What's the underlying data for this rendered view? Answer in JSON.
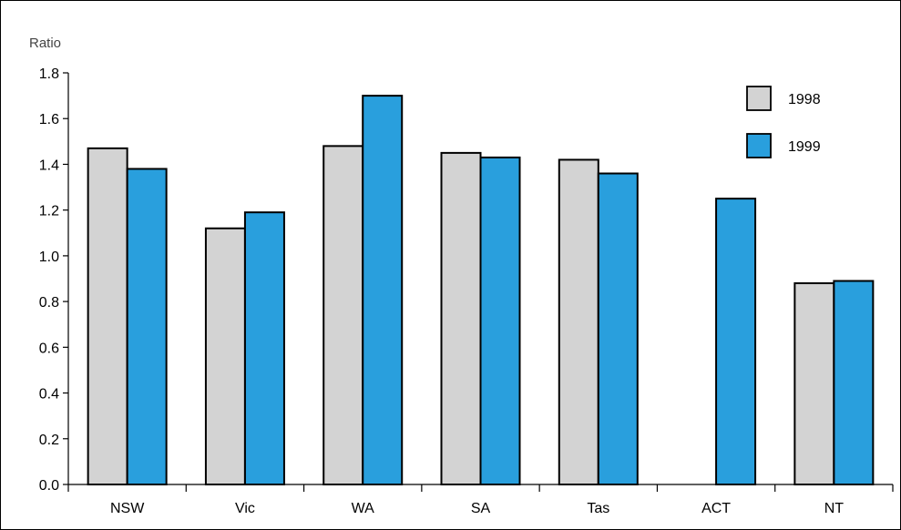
{
  "chart_data": {
    "type": "bar",
    "ylabel": "Ratio",
    "xlabel": "",
    "ylim": [
      0,
      1.8
    ],
    "yticks": [
      "0.0",
      "0.2",
      "0.4",
      "0.6",
      "0.8",
      "1.0",
      "1.2",
      "1.4",
      "1.6",
      "1.8"
    ],
    "categories": [
      "NSW",
      "Vic",
      "WA",
      "SA",
      "Tas",
      "ACT",
      "NT"
    ],
    "series": [
      {
        "name": "1998",
        "color": "#d3d3d3",
        "values": [
          1.47,
          1.12,
          1.48,
          1.45,
          1.42,
          null,
          0.88
        ]
      },
      {
        "name": "1999",
        "color": "#299fdd",
        "values": [
          1.38,
          1.19,
          1.7,
          1.43,
          1.36,
          1.25,
          0.89
        ]
      }
    ],
    "legend_position": "top-right",
    "grid": false
  }
}
